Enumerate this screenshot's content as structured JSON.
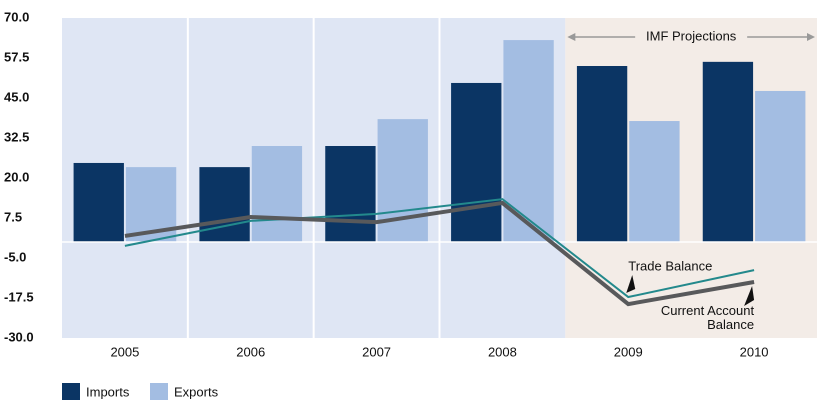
{
  "chart_data": {
    "type": "bar",
    "categories": [
      "2005",
      "2006",
      "2007",
      "2008",
      "2009",
      "2010"
    ],
    "series": [
      {
        "name": "Imports",
        "color": "#0b3564",
        "values": [
          24.7,
          23.4,
          30.0,
          49.7,
          55.0,
          56.3
        ]
      },
      {
        "name": "Exports",
        "color": "#a3bde2",
        "values": [
          23.4,
          30.0,
          38.4,
          63.1,
          37.8,
          47.2
        ]
      }
    ],
    "lines": [
      {
        "name": "Trade Balance",
        "color": "#23898c",
        "values": [
          -1.2,
          6.6,
          8.8,
          13.4,
          -17.2,
          -8.8
        ]
      },
      {
        "name": "Current Account Balance",
        "color": "#58595b",
        "values": [
          1.9,
          7.8,
          6.2,
          12.2,
          -19.4,
          -12.5
        ]
      }
    ],
    "ylim": [
      -30,
      70
    ],
    "yticks": [
      {
        "value": -30,
        "label": "-30.0"
      },
      -17.5,
      {
        "value": -5,
        "label": "-5.0"
      },
      7.5,
      {
        "value": 20,
        "label": "20.0"
      },
      32.5,
      {
        "value": 45,
        "label": "45.0"
      },
      57.5,
      {
        "value": 70,
        "label": "70.0"
      }
    ],
    "projection_label": "IMF Projections",
    "projection_start": "2009",
    "background_colors": {
      "actual": "#dfe6f4",
      "projection": "#f3ece7"
    }
  }
}
